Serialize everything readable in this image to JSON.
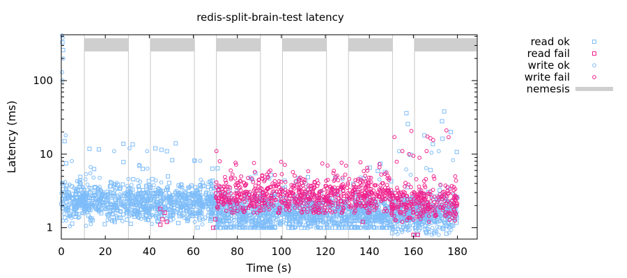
{
  "chart_data": {
    "type": "scatter",
    "title": "redis-split-brain-test latency",
    "xlabel": "Time (s)",
    "ylabel": "Latency (ms)",
    "xlim": [
      0,
      189
    ],
    "ylim": [
      0.7,
      420
    ],
    "yscale": "log",
    "xticks": [
      0,
      20,
      40,
      60,
      80,
      100,
      120,
      140,
      160,
      180
    ],
    "yticks": [
      1,
      10,
      100
    ],
    "legend_position": "right",
    "legend": [
      {
        "key": "read_ok",
        "label": "read ok",
        "color": "#7dbcf9",
        "marker": "square"
      },
      {
        "key": "read_fail",
        "label": "read fail",
        "color": "#f0208c",
        "marker": "square"
      },
      {
        "key": "write_ok",
        "label": "write ok",
        "color": "#7dbcf9",
        "marker": "circle"
      },
      {
        "key": "write_fail",
        "label": "write fail",
        "color": "#f0208c",
        "marker": "circle"
      },
      {
        "key": "nemesis",
        "label": "nemesis",
        "color": "#cfcfcf",
        "marker": "bar"
      }
    ],
    "nemesis_intervals": [
      [
        10.5,
        30.5
      ],
      [
        40.5,
        60.5
      ],
      [
        70.5,
        90.5
      ],
      [
        100.5,
        120.5
      ],
      [
        130.5,
        150.5
      ],
      [
        160.5,
        189
      ]
    ],
    "series": [
      {
        "name": "read ok",
        "summary": [
          {
            "x_range": [
              0,
              10
            ],
            "median_ms": 2.3,
            "spread_range": [
              1.0,
              8
            ]
          },
          {
            "x_range": [
              10,
              70
            ],
            "median_ms": 2.2,
            "spread_range": [
              1.0,
              14
            ]
          },
          {
            "x_range": [
              70,
              150
            ],
            "median_ms": 1.5,
            "spread_range": [
              1.0,
              7.5
            ]
          },
          {
            "x_range": [
              150,
              180
            ],
            "median_ms": 1.6,
            "spread_range": [
              0.75,
              38
            ]
          }
        ],
        "points": [
          [
            0.5,
            330
          ],
          [
            0.8,
            260
          ],
          [
            1.5,
            15
          ],
          [
            52,
            14
          ],
          [
            145,
            7.4
          ],
          [
            165,
            18
          ],
          [
            173,
            28
          ],
          [
            174,
            38
          ],
          [
            177,
            20
          ]
        ]
      },
      {
        "name": "read fail",
        "points": [
          [
            45,
            1.8
          ],
          [
            46,
            1.3
          ],
          [
            47,
            1.6
          ],
          [
            45,
            1.1
          ],
          [
            48,
            1.2
          ],
          [
            69,
            1.0
          ],
          [
            70,
            1.3
          ],
          [
            137,
            1.2
          ],
          [
            160,
            0.8
          ],
          [
            162,
            0.8
          ]
        ]
      },
      {
        "name": "write ok",
        "summary": [
          {
            "x_range": [
              0,
              10
            ],
            "median_ms": 2.3,
            "spread_range": [
              1.0,
              18
            ]
          },
          {
            "x_range": [
              10,
              70
            ],
            "median_ms": 2.2,
            "spread_range": [
              1.0,
              10
            ]
          },
          {
            "x_range": [
              70,
              150
            ],
            "median_ms": 1.6,
            "spread_range": [
              1.0,
              5
            ]
          },
          {
            "x_range": [
              150,
              180
            ],
            "median_ms": 1.5,
            "spread_range": [
              0.8,
              12
            ]
          }
        ],
        "points": [
          [
            0.3,
            410
          ],
          [
            0.6,
            380
          ],
          [
            0.9,
            200
          ],
          [
            0.4,
            130
          ],
          [
            0.5,
            100
          ],
          [
            2,
            18
          ],
          [
            24,
            11
          ],
          [
            31,
            12
          ],
          [
            39,
            11
          ]
        ]
      },
      {
        "name": "write fail",
        "summary": [
          {
            "x_range": [
              70,
              150
            ],
            "median_ms": 2.8,
            "spread_range": [
              1.6,
              8
            ]
          },
          {
            "x_range": [
              150,
              180
            ],
            "median_ms": 2.2,
            "spread_range": [
              1.2,
              21
            ]
          }
        ],
        "points": [
          [
            70.5,
            11
          ],
          [
            72,
            8
          ],
          [
            77,
            6
          ],
          [
            95,
            6
          ],
          [
            121,
            7
          ],
          [
            139,
            6.5
          ],
          [
            155,
            11
          ],
          [
            158,
            10
          ],
          [
            160,
            9.5
          ],
          [
            166,
            11
          ],
          [
            175,
            21
          ],
          [
            176,
            17
          ],
          [
            179,
            5
          ]
        ]
      }
    ]
  }
}
